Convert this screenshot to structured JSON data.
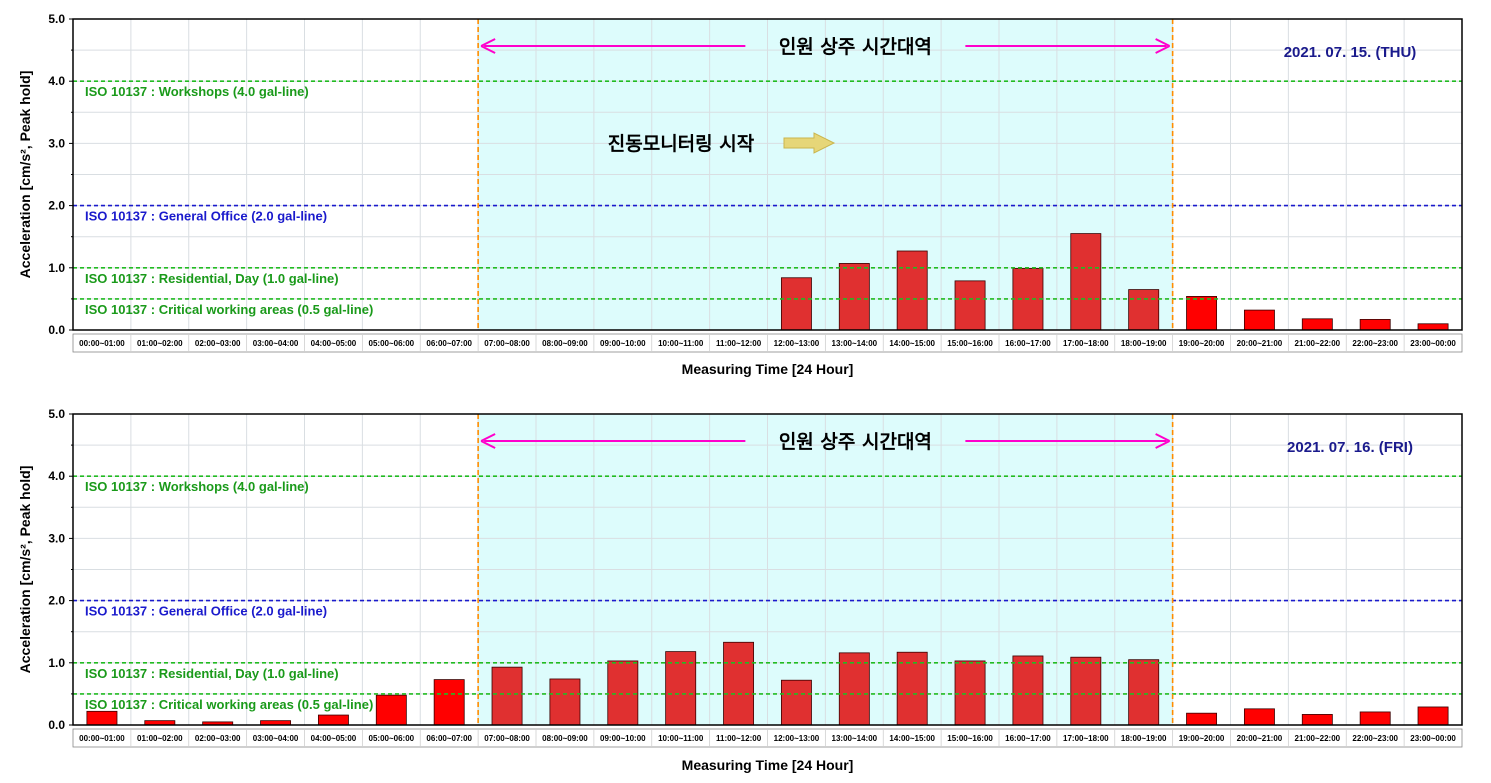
{
  "chart_data": [
    {
      "type": "bar",
      "date_label": "2021. 07. 15. (THU)",
      "band_label": "인원 상주 시간대역",
      "note_label": "진동모니터링 시작",
      "xlabel": "Measuring Time [24 Hour]",
      "ylabel": "Acceleration [cm/s², Peak hold]",
      "ylim": [
        0,
        5
      ],
      "yticks": [
        "0.0",
        "1.0",
        "2.0",
        "3.0",
        "4.0",
        "5.0"
      ],
      "categories": [
        "00:00~01:00",
        "01:00~02:00",
        "02:00~03:00",
        "03:00~04:00",
        "04:00~05:00",
        "05:00~06:00",
        "06:00~07:00",
        "07:00~08:00",
        "08:00~09:00",
        "09:00~10:00",
        "10:00~11:00",
        "11:00~12:00",
        "12:00~13:00",
        "13:00~14:00",
        "14:00~15:00",
        "15:00~16:00",
        "16:00~17:00",
        "17:00~18:00",
        "18:00~19:00",
        "19:00~20:00",
        "20:00~21:00",
        "21:00~22:00",
        "22:00~23:00",
        "23:00~00:00"
      ],
      "values": [
        null,
        null,
        null,
        null,
        null,
        null,
        null,
        null,
        null,
        null,
        null,
        null,
        0.84,
        1.07,
        1.27,
        0.79,
        0.99,
        1.55,
        0.65,
        0.54,
        0.32,
        0.18,
        0.17,
        0.1
      ],
      "band_range": [
        "07:00",
        "19:00"
      ],
      "reference_lines": [
        {
          "label": "ISO 10137 : Workshops (4.0 gal-line)",
          "value": 4.0,
          "color": "#22bb22"
        },
        {
          "label": "ISO 10137 : General Office (2.0 gal-line)",
          "value": 2.0,
          "color": "#1a1acc"
        },
        {
          "label": "ISO 10137 : Residential, Day (1.0 gal-line)",
          "value": 1.0,
          "color": "#22bb22"
        },
        {
          "label": "ISO 10137 : Critical working areas (0.5 gal-line)",
          "value": 0.5,
          "color": "#22bb22"
        }
      ]
    },
    {
      "type": "bar",
      "date_label": "2021. 07. 16. (FRI)",
      "band_label": "인원 상주 시간대역",
      "xlabel": "Measuring Time [24 Hour]",
      "ylabel": "Acceleration [cm/s², Peak hold]",
      "ylim": [
        0,
        5
      ],
      "yticks": [
        "0.0",
        "1.0",
        "2.0",
        "3.0",
        "4.0",
        "5.0"
      ],
      "categories": [
        "00:00~01:00",
        "01:00~02:00",
        "02:00~03:00",
        "03:00~04:00",
        "04:00~05:00",
        "05:00~06:00",
        "06:00~07:00",
        "07:00~08:00",
        "08:00~09:00",
        "09:00~10:00",
        "10:00~11:00",
        "11:00~12:00",
        "12:00~13:00",
        "13:00~14:00",
        "14:00~15:00",
        "15:00~16:00",
        "16:00~17:00",
        "17:00~18:00",
        "18:00~19:00",
        "19:00~20:00",
        "20:00~21:00",
        "21:00~22:00",
        "22:00~23:00",
        "23:00~00:00"
      ],
      "values": [
        0.22,
        0.07,
        0.05,
        0.07,
        0.16,
        0.48,
        0.73,
        0.93,
        0.74,
        1.03,
        1.18,
        1.33,
        0.72,
        1.16,
        1.17,
        1.03,
        1.11,
        1.09,
        1.05,
        0.19,
        0.26,
        0.17,
        0.21,
        0.29
      ],
      "band_range": [
        "07:00",
        "19:00"
      ],
      "reference_lines": [
        {
          "label": "ISO 10137 : Workshops (4.0 gal-line)",
          "value": 4.0,
          "color": "#22bb22"
        },
        {
          "label": "ISO 10137 : General Office (2.0 gal-line)",
          "value": 2.0,
          "color": "#1a1acc"
        },
        {
          "label": "ISO 10137 : Residential, Day (1.0 gal-line)",
          "value": 1.0,
          "color": "#22bb22"
        },
        {
          "label": "ISO 10137 : Critical working areas (0.5 gal-line)",
          "value": 0.5,
          "color": "#22bb22"
        }
      ]
    }
  ],
  "colors": {
    "bar_in_band": "#e03030",
    "bar_out_band": "#ff0000",
    "band_fill": "#ddfcfc",
    "band_border": "#ff8c00",
    "arrow": "#ff00cc",
    "note_arrow": "#e6d678"
  }
}
